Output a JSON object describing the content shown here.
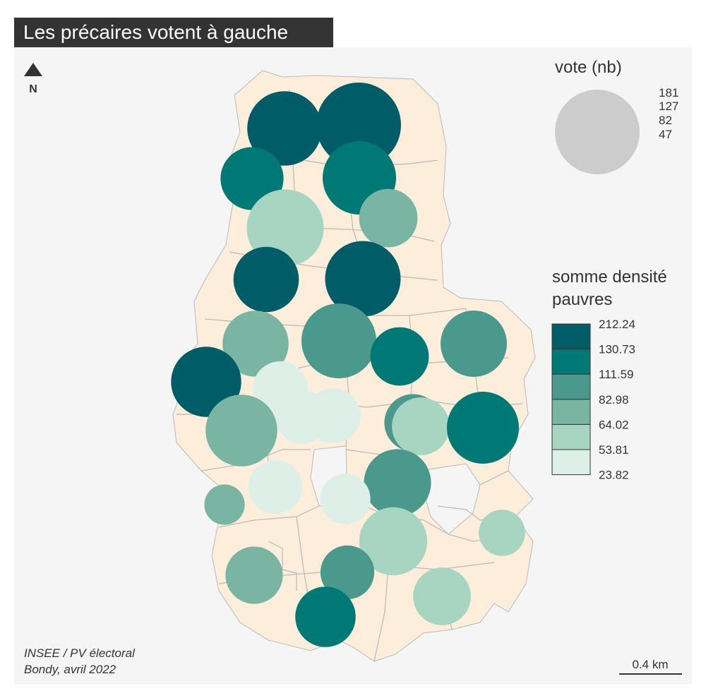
{
  "title": "Les précaires votent à gauche",
  "north_arrow": {
    "label": "N",
    "icon": "north-arrow-icon"
  },
  "size_legend": {
    "title": "vote (nb)",
    "values": [
      "181",
      "127",
      "82",
      "47"
    ],
    "color": "#cccccc"
  },
  "color_legend": {
    "title_line1": "somme densité",
    "title_line2": "pauvres",
    "breaks": [
      "212.24",
      "130.73",
      "111.59",
      "82.98",
      "64.02",
      "53.81",
      "23.82"
    ],
    "colors": [
      "#005c67",
      "#007875",
      "#4b988d",
      "#7ab5a4",
      "#a8d5c2",
      "#ddefe6"
    ]
  },
  "source": {
    "line1": "INSEE / PV électoral",
    "line2": "Bondy, avril 2022"
  },
  "scale_bar": {
    "label": "0.4 km"
  },
  "map_colors": {
    "panel_bg": "#f5f5f5",
    "district_fill": "#fdeedc",
    "district_stroke": "#b9b9b9"
  },
  "map_data": {
    "points": [
      {
        "votes": 140,
        "class": 0
      },
      {
        "votes": 181,
        "class": 0
      },
      {
        "votes": 100,
        "class": 1
      },
      {
        "votes": 136,
        "class": 1
      },
      {
        "votes": 150,
        "class": 4
      },
      {
        "votes": 86,
        "class": 3
      },
      {
        "votes": 108,
        "class": 0
      },
      {
        "votes": 144,
        "class": 0
      },
      {
        "votes": 110,
        "class": 3
      },
      {
        "votes": 141,
        "class": 2
      },
      {
        "votes": 86,
        "class": 1
      },
      {
        "votes": 111,
        "class": 2
      },
      {
        "votes": 124,
        "class": 0
      },
      {
        "votes": 77,
        "class": 5
      },
      {
        "votes": 83,
        "class": 2
      },
      {
        "votes": 72,
        "class": 5
      },
      {
        "votes": 76,
        "class": 5
      },
      {
        "votes": 84,
        "class": 4
      },
      {
        "votes": 130,
        "class": 3
      },
      {
        "votes": 131,
        "class": 1
      },
      {
        "votes": 114,
        "class": 2
      },
      {
        "votes": 73,
        "class": 5
      },
      {
        "votes": 41,
        "class": 3
      },
      {
        "votes": 64,
        "class": 5
      },
      {
        "votes": 117,
        "class": 4
      },
      {
        "votes": 83,
        "class": 3
      },
      {
        "votes": 73,
        "class": 2
      },
      {
        "votes": 84,
        "class": 4
      },
      {
        "votes": 92,
        "class": 1
      },
      {
        "votes": 54,
        "class": 4
      }
    ]
  }
}
